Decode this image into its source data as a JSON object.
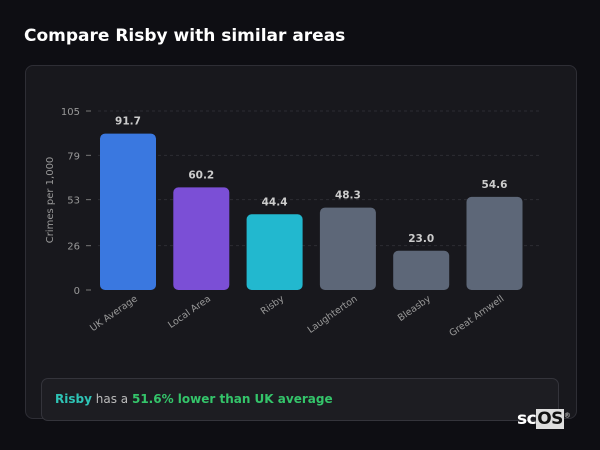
{
  "title": "Compare Risby with similar areas",
  "chart_data": {
    "type": "bar",
    "ylabel": "Crimes per 1,000",
    "ylim": [
      0,
      105
    ],
    "yticks": [
      0,
      26,
      53,
      79,
      105
    ],
    "grid": true,
    "categories": [
      "UK Average",
      "Local Area",
      "Risby",
      "Laughterton",
      "Bleasby",
      "Great Amwell"
    ],
    "values": [
      91.7,
      60.2,
      44.4,
      48.3,
      23.0,
      54.6
    ],
    "data_labels": [
      "91.7",
      "60.2",
      "44.4",
      "48.3",
      "23.0",
      "54.6"
    ],
    "colors": [
      "#3a78e0",
      "#7b4fd6",
      "#22b8cf",
      "#5d6778",
      "#5d6778",
      "#5d6778"
    ]
  },
  "footer": {
    "place": "Risby",
    "middle": "has a",
    "highlight": "51.6% lower than UK average"
  },
  "logo": {
    "sc": "sc",
    "os": "OS"
  }
}
